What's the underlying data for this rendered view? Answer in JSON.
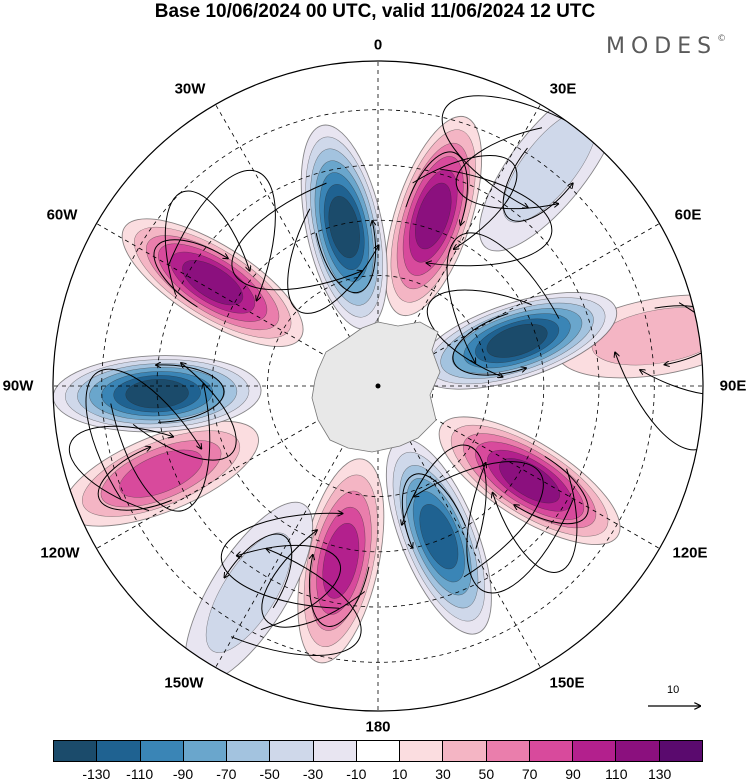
{
  "title": "Base 10/06/2024 00 UTC, valid 11/06/2024 12 UTC",
  "brand": "MODES",
  "brand_mark": "©",
  "longitude_labels": [
    "0",
    "30E",
    "60E",
    "90E",
    "120E",
    "150E",
    "180",
    "150W",
    "120W",
    "90W",
    "60W",
    "30W"
  ],
  "reference_vector": "10",
  "colorbar": {
    "ticks": [
      "-130",
      "-110",
      "-90",
      "-70",
      "-50",
      "-30",
      "-10",
      "10",
      "30",
      "50",
      "70",
      "90",
      "110",
      "130"
    ],
    "colors": [
      "#1b4b6b",
      "#1f6291",
      "#3a85b6",
      "#6aa6cc",
      "#a3c3df",
      "#cfd8ea",
      "#e8e5f1",
      "#ffffff",
      "#fbdde0",
      "#f4b5c4",
      "#ea7eac",
      "#d84a9c",
      "#b3208d",
      "#8b107e",
      "#5a0a6e"
    ]
  },
  "features": {
    "positive_lobes": [
      {
        "name": "lobe-20E",
        "bearing": 18,
        "radius": 0.55,
        "value": 120
      },
      {
        "name": "lobe-60W",
        "bearing": -58,
        "radius": 0.6,
        "value": 120
      },
      {
        "name": "lobe-120E",
        "bearing": 122,
        "radius": 0.55,
        "value": 110
      },
      {
        "name": "lobe-165W",
        "bearing": 192,
        "radius": 0.55,
        "value": 90
      },
      {
        "name": "lobe-110W",
        "bearing": -112,
        "radius": 0.72,
        "value": 80
      },
      {
        "name": "lobe-80E",
        "bearing": 80,
        "radius": 0.88,
        "value": 30
      }
    ],
    "negative_lobes": [
      {
        "name": "lobe-10W",
        "bearing": -12,
        "radius": 0.5,
        "value": -130
      },
      {
        "name": "lobe-70E",
        "bearing": 72,
        "radius": 0.45,
        "value": -130
      },
      {
        "name": "lobe-90W",
        "bearing": -92,
        "radius": 0.68,
        "value": -130
      },
      {
        "name": "lobe-160E",
        "bearing": 158,
        "radius": 0.5,
        "value": -110
      },
      {
        "name": "lobe-150W",
        "bearing": 212,
        "radius": 0.75,
        "value": -30
      },
      {
        "name": "lobe-40E",
        "bearing": 38,
        "radius": 0.86,
        "value": -30
      }
    ]
  }
}
